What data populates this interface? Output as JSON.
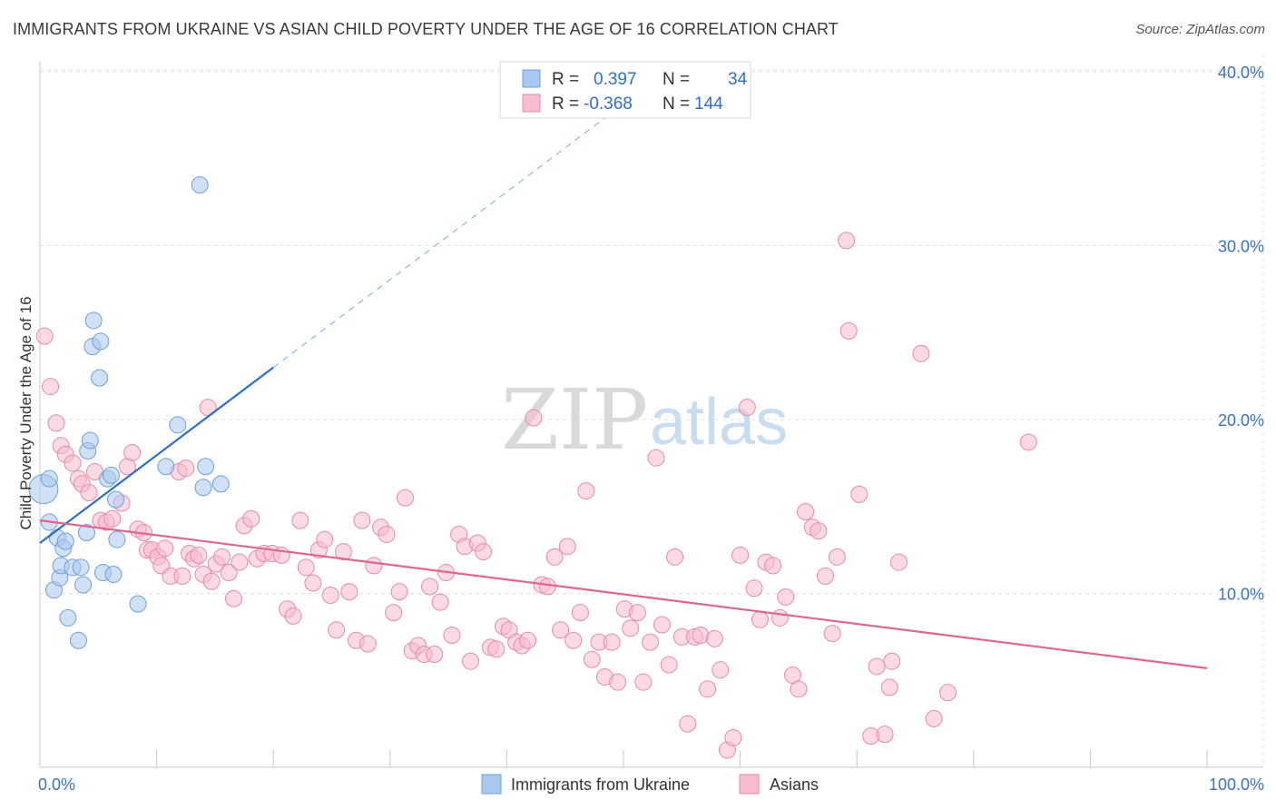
{
  "header": {
    "title": "IMMIGRANTS FROM UKRAINE VS ASIAN CHILD POVERTY UNDER THE AGE OF 16 CORRELATION CHART",
    "source": "Source: ZipAtlas.com"
  },
  "watermark": {
    "zip": "ZIP",
    "atlas": "atlas"
  },
  "legend": {
    "rows": [
      {
        "r_label": "R =",
        "r_value": "0.397",
        "n_label": "N =",
        "n_value": "34",
        "color": "#a9c8ef",
        "stroke": "#6f9fd8"
      },
      {
        "r_label": "R =",
        "r_value": "-0.368",
        "n_label": "N =",
        "n_value": "144",
        "color": "#f7bccd",
        "stroke": "#e88aa8"
      }
    ]
  },
  "bottom_legend": {
    "items": [
      "Immigrants from Ukraine",
      "Asians"
    ]
  },
  "chart_data": {
    "type": "scatter",
    "ylabel": "Child Poverty Under the Age of 16",
    "xlabel": "",
    "xlim": [
      0,
      100
    ],
    "ylim": [
      0,
      41
    ],
    "x_tick_labels": [
      "0.0%",
      "100.0%"
    ],
    "y_ticks": [
      10,
      20,
      30,
      40
    ],
    "y_tick_labels": [
      "10.0%",
      "20.0%",
      "30.0%",
      "40.0%"
    ],
    "grid": true,
    "series": [
      {
        "name": "Immigrants from Ukraine",
        "color": "#a9c8ef",
        "stroke": "#6f9fd8",
        "trend": {
          "x0": 0,
          "y0": 12.9,
          "x1": 20,
          "y1": 23.0,
          "dash_to_x": 50
        },
        "trend_color": "#2a6fce",
        "points": [
          [
            0.3,
            16.0
          ],
          [
            0.8,
            16.6
          ],
          [
            0.8,
            14.1
          ],
          [
            1.2,
            10.2
          ],
          [
            1.5,
            13.2
          ],
          [
            1.7,
            10.9
          ],
          [
            1.8,
            11.6
          ],
          [
            2.0,
            12.6
          ],
          [
            2.2,
            13.0
          ],
          [
            2.4,
            8.6
          ],
          [
            2.8,
            11.5
          ],
          [
            3.3,
            7.3
          ],
          [
            3.5,
            11.5
          ],
          [
            3.7,
            10.5
          ],
          [
            4.0,
            13.5
          ],
          [
            4.1,
            18.2
          ],
          [
            4.3,
            18.8
          ],
          [
            4.5,
            24.2
          ],
          [
            4.6,
            25.7
          ],
          [
            5.1,
            22.4
          ],
          [
            5.2,
            24.5
          ],
          [
            5.4,
            11.2
          ],
          [
            5.8,
            16.6
          ],
          [
            6.1,
            16.8
          ],
          [
            6.3,
            11.1
          ],
          [
            6.5,
            15.4
          ],
          [
            6.6,
            13.1
          ],
          [
            8.4,
            9.4
          ],
          [
            10.8,
            17.3
          ],
          [
            11.8,
            19.7
          ],
          [
            13.7,
            33.5
          ],
          [
            14.0,
            16.1
          ],
          [
            14.2,
            17.3
          ],
          [
            15.5,
            16.3
          ]
        ]
      },
      {
        "name": "Asians",
        "color": "#f7bccd",
        "stroke": "#e88aa8",
        "trend": {
          "x0": 0,
          "y0": 14.2,
          "x1": 100,
          "y1": 5.7
        },
        "trend_color": "#e0668f",
        "points": [
          [
            0.4,
            24.8
          ],
          [
            0.9,
            21.9
          ],
          [
            1.4,
            19.8
          ],
          [
            1.8,
            18.5
          ],
          [
            2.2,
            18.0
          ],
          [
            2.8,
            17.5
          ],
          [
            3.3,
            16.6
          ],
          [
            3.6,
            16.3
          ],
          [
            4.2,
            15.8
          ],
          [
            4.7,
            17.0
          ],
          [
            5.2,
            14.2
          ],
          [
            5.7,
            14.1
          ],
          [
            6.2,
            14.3
          ],
          [
            7.0,
            15.2
          ],
          [
            7.5,
            17.3
          ],
          [
            7.9,
            18.1
          ],
          [
            8.4,
            13.7
          ],
          [
            8.9,
            13.5
          ],
          [
            9.2,
            12.5
          ],
          [
            9.6,
            12.5
          ],
          [
            10.1,
            12.1
          ],
          [
            10.4,
            11.6
          ],
          [
            10.7,
            12.6
          ],
          [
            11.2,
            11.0
          ],
          [
            11.9,
            17.0
          ],
          [
            12.2,
            11.0
          ],
          [
            12.5,
            17.2
          ],
          [
            12.8,
            12.3
          ],
          [
            13.2,
            12.0
          ],
          [
            13.6,
            12.2
          ],
          [
            14.0,
            11.1
          ],
          [
            14.4,
            20.7
          ],
          [
            14.7,
            10.7
          ],
          [
            15.1,
            11.7
          ],
          [
            15.6,
            12.1
          ],
          [
            16.2,
            11.2
          ],
          [
            16.6,
            9.7
          ],
          [
            17.1,
            11.8
          ],
          [
            17.5,
            13.9
          ],
          [
            18.1,
            14.3
          ],
          [
            18.6,
            12.0
          ],
          [
            19.2,
            12.3
          ],
          [
            19.9,
            12.3
          ],
          [
            20.7,
            12.2
          ],
          [
            21.2,
            9.1
          ],
          [
            21.7,
            8.7
          ],
          [
            22.3,
            14.2
          ],
          [
            22.8,
            11.5
          ],
          [
            23.4,
            10.6
          ],
          [
            23.9,
            12.5
          ],
          [
            24.4,
            13.1
          ],
          [
            24.9,
            9.9
          ],
          [
            25.4,
            7.9
          ],
          [
            26.0,
            12.4
          ],
          [
            26.5,
            10.1
          ],
          [
            27.1,
            7.3
          ],
          [
            27.6,
            14.2
          ],
          [
            28.1,
            7.1
          ],
          [
            28.6,
            11.6
          ],
          [
            29.2,
            13.8
          ],
          [
            29.7,
            13.4
          ],
          [
            30.3,
            8.9
          ],
          [
            30.8,
            10.1
          ],
          [
            31.3,
            15.5
          ],
          [
            31.9,
            6.7
          ],
          [
            32.4,
            7.0
          ],
          [
            32.9,
            6.5
          ],
          [
            33.4,
            10.4
          ],
          [
            33.8,
            6.5
          ],
          [
            34.3,
            9.5
          ],
          [
            34.8,
            11.2
          ],
          [
            35.3,
            7.6
          ],
          [
            35.9,
            13.4
          ],
          [
            36.4,
            12.7
          ],
          [
            36.9,
            6.1
          ],
          [
            37.5,
            12.9
          ],
          [
            38.0,
            12.4
          ],
          [
            38.6,
            6.9
          ],
          [
            39.1,
            6.8
          ],
          [
            39.7,
            8.1
          ],
          [
            40.2,
            7.9
          ],
          [
            40.8,
            7.2
          ],
          [
            41.3,
            7.0
          ],
          [
            41.8,
            7.3
          ],
          [
            42.3,
            20.1
          ],
          [
            43.0,
            10.5
          ],
          [
            43.5,
            10.4
          ],
          [
            44.1,
            12.1
          ],
          [
            44.6,
            7.9
          ],
          [
            45.2,
            12.7
          ],
          [
            45.7,
            7.3
          ],
          [
            46.3,
            8.9
          ],
          [
            46.8,
            15.9
          ],
          [
            47.3,
            6.2
          ],
          [
            47.9,
            7.2
          ],
          [
            48.4,
            5.2
          ],
          [
            49.0,
            7.2
          ],
          [
            49.5,
            4.9
          ],
          [
            50.1,
            9.1
          ],
          [
            50.6,
            8.0
          ],
          [
            51.2,
            8.9
          ],
          [
            51.7,
            4.9
          ],
          [
            52.3,
            7.2
          ],
          [
            52.8,
            17.8
          ],
          [
            53.3,
            8.2
          ],
          [
            53.9,
            5.9
          ],
          [
            54.4,
            12.1
          ],
          [
            55.0,
            7.5
          ],
          [
            55.5,
            2.5
          ],
          [
            56.1,
            7.5
          ],
          [
            56.6,
            7.6
          ],
          [
            57.2,
            4.5
          ],
          [
            57.8,
            7.4
          ],
          [
            58.3,
            5.6
          ],
          [
            58.9,
            1.0
          ],
          [
            59.4,
            1.7
          ],
          [
            60.0,
            12.2
          ],
          [
            60.6,
            20.7
          ],
          [
            61.2,
            10.3
          ],
          [
            61.7,
            8.5
          ],
          [
            62.2,
            11.8
          ],
          [
            62.8,
            11.6
          ],
          [
            63.4,
            8.6
          ],
          [
            63.9,
            9.8
          ],
          [
            64.5,
            5.3
          ],
          [
            65.0,
            4.5
          ],
          [
            65.6,
            14.7
          ],
          [
            66.2,
            13.8
          ],
          [
            66.7,
            13.6
          ],
          [
            67.3,
            11.0
          ],
          [
            67.9,
            7.7
          ],
          [
            68.3,
            12.1
          ],
          [
            69.1,
            30.3
          ],
          [
            69.3,
            25.1
          ],
          [
            70.2,
            15.7
          ],
          [
            71.2,
            1.8
          ],
          [
            71.7,
            5.8
          ],
          [
            72.4,
            1.9
          ],
          [
            72.8,
            4.6
          ],
          [
            73.0,
            6.1
          ],
          [
            73.6,
            11.8
          ],
          [
            75.5,
            23.8
          ],
          [
            76.6,
            2.8
          ],
          [
            77.8,
            4.3
          ],
          [
            84.7,
            18.7
          ]
        ]
      }
    ]
  }
}
